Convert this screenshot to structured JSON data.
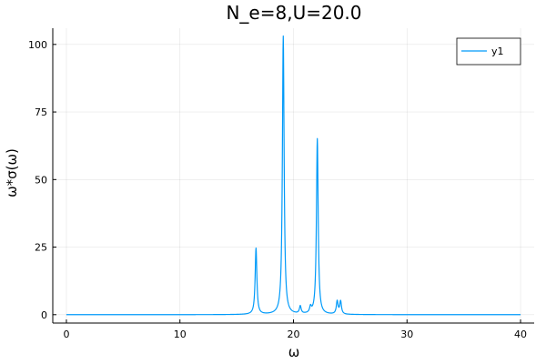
{
  "chart_data": {
    "type": "line",
    "title": "N_e=8,U=20.0",
    "xlabel": "ω",
    "ylabel": "ω*σ(ω)",
    "xlim": [
      -1.2,
      41.2
    ],
    "ylim": [
      -3.1,
      106.0
    ],
    "x_ticks": [
      0,
      10,
      20,
      30,
      40
    ],
    "x_tick_labels": [
      "0",
      "10",
      "20",
      "30",
      "40"
    ],
    "y_ticks": [
      0,
      25,
      50,
      75,
      100
    ],
    "y_tick_labels": [
      "0",
      "25",
      "50",
      "75",
      "100"
    ],
    "grid": true,
    "legend_position": "top-right",
    "series": [
      {
        "name": "y1",
        "color": "#009af9",
        "peaks": [
          {
            "center": 16.7,
            "height": 24.5
          },
          {
            "center": 19.1,
            "height": 103.0
          },
          {
            "center": 20.6,
            "height": 2.8
          },
          {
            "center": 21.5,
            "height": 2.2
          },
          {
            "center": 22.1,
            "height": 65.0
          },
          {
            "center": 23.85,
            "height": 4.8
          },
          {
            "center": 24.15,
            "height": 4.8
          }
        ],
        "peak_half_width": 0.09,
        "x_start": 0,
        "x_end": 40
      }
    ]
  }
}
